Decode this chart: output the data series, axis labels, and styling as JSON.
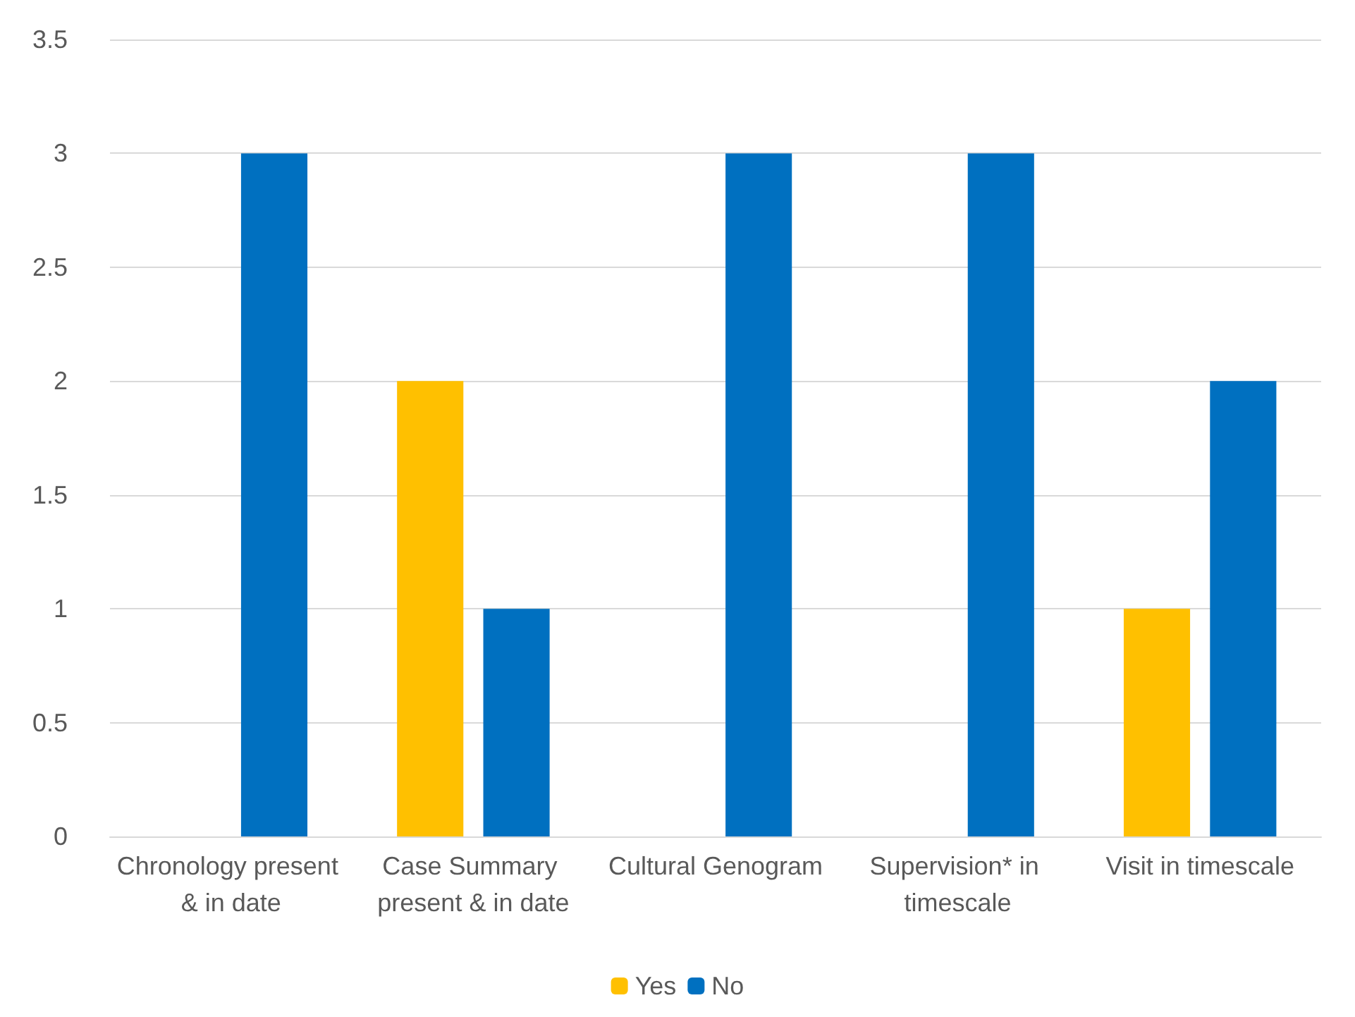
{
  "chart_data": {
    "type": "bar",
    "categories": [
      "Chronology present & in date",
      "Case Summary present & in date",
      "Cultural Genogram",
      "Supervision* in timescale",
      "Visit in timescale"
    ],
    "series": [
      {
        "name": "Yes",
        "color": "#ffc000",
        "values": [
          0,
          2,
          0,
          0,
          1
        ]
      },
      {
        "name": "No",
        "color": "#0070c0",
        "values": [
          3,
          1,
          3,
          3,
          2
        ]
      }
    ],
    "ylim": [
      0,
      3.5
    ],
    "yticks": [
      0,
      0.5,
      1,
      1.5,
      2,
      2.5,
      3,
      3.5
    ],
    "grid": "y",
    "legend": "bottom"
  }
}
